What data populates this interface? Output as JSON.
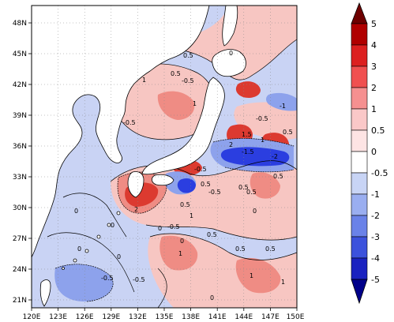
{
  "map": {
    "lon_ticks": [
      "120E",
      "123E",
      "126E",
      "129E",
      "132E",
      "135E",
      "138E",
      "141E",
      "144E",
      "147E",
      "150E"
    ],
    "lat_ticks": [
      "21N",
      "24N",
      "27N",
      "30N",
      "33N",
      "36N",
      "39N",
      "42N",
      "45N",
      "48N"
    ],
    "lon_range": [
      120,
      150
    ],
    "lat_range": [
      20,
      50
    ],
    "contour_labels": [
      "0.5",
      "-0.5",
      "1",
      "0",
      "-1",
      "2",
      "-1.5",
      "1.5",
      "-2",
      "-0.5",
      "0.5",
      "1",
      "2",
      "0",
      "-0.5",
      "0.5",
      "0",
      "1",
      "-0.5",
      "0.5",
      "0.5",
      "-0.5",
      "0.5",
      "0",
      "1",
      "0.5",
      "-0.5",
      "0.5",
      "0",
      "0",
      "1",
      "1",
      "-0.5",
      "0.5",
      "0.5",
      "0",
      "-0.5",
      "0.5",
      "0",
      "0",
      "1"
    ]
  },
  "colorbar": {
    "levels": [
      "5",
      "4",
      "3",
      "2",
      "1",
      "0.5",
      "0",
      "-0.5",
      "-1",
      "-2",
      "-3",
      "-4",
      "-5"
    ],
    "colors": [
      "#6e0000",
      "#b00000",
      "#dc2020",
      "#f05050",
      "#f59090",
      "#fac8c8",
      "#ffffff",
      "#c8d4f5",
      "#9aaef0",
      "#6a82e8",
      "#3c52dc",
      "#1a22c0",
      "#00008a"
    ]
  },
  "palette": {
    "pos_light": "#f7c6c2",
    "pos_mid": "#ef8c84",
    "pos_strong": "#dc3a30",
    "neg_light": "#c9d3f4",
    "neg_mid": "#8da2ec",
    "neg_strong": "#2b3ee0"
  }
}
